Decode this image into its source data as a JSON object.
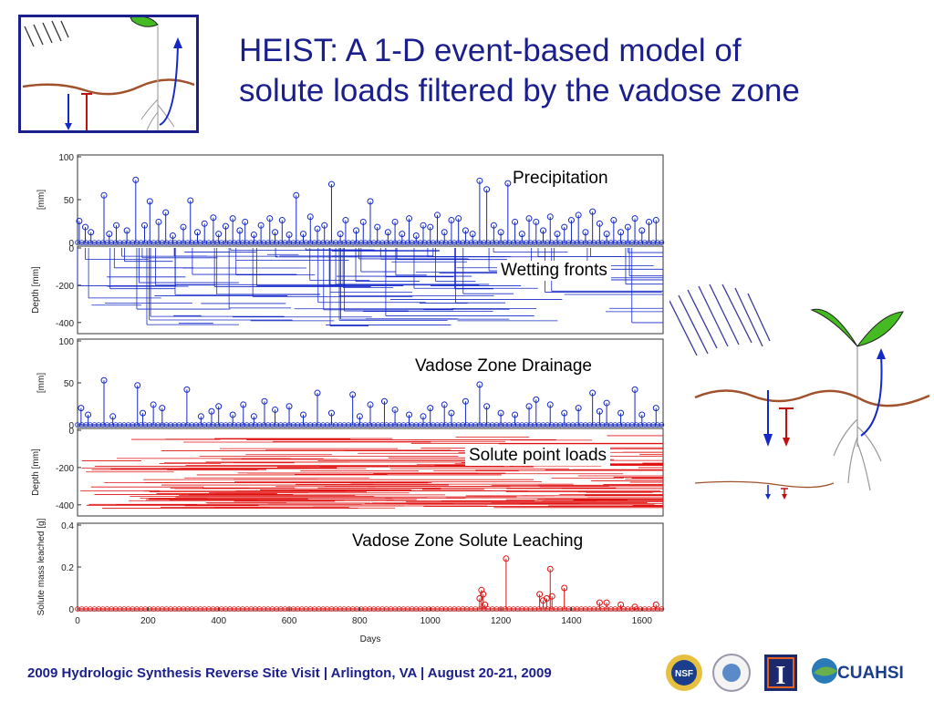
{
  "slide": {
    "title_line1": "HEIST: A 1-D event-based model of",
    "title_line2": "solute loads filtered by the vadose zone",
    "footer": "2009 Hydrologic Synthesis Reverse Site Visit | Arlington, VA | August 20-21, 2009",
    "logos": {
      "nsf": "NSF",
      "illinois": "I",
      "cuahsi": "CUAHSI"
    }
  },
  "colors": {
    "title": "#1a1f8c",
    "blue_series": "#1428c8",
    "red_series": "#e01010",
    "soil": "#a0522d",
    "leaf": "#44bb22"
  },
  "chart_data": [
    {
      "type": "stem",
      "label": "Precipitation",
      "ylabel": "[mm]",
      "ylim": [
        0,
        100
      ],
      "yticks": [
        "100",
        "50",
        "0"
      ],
      "x": [
        5,
        22,
        38,
        75,
        90,
        110,
        140,
        165,
        190,
        205,
        230,
        250,
        270,
        300,
        320,
        340,
        360,
        385,
        400,
        420,
        440,
        460,
        475,
        500,
        520,
        545,
        560,
        580,
        600,
        620,
        640,
        660,
        680,
        700,
        720,
        745,
        760,
        790,
        810,
        830,
        850,
        880,
        900,
        920,
        940,
        960,
        980,
        1000,
        1020,
        1040,
        1060,
        1080,
        1100,
        1120,
        1140,
        1160,
        1180,
        1200,
        1220,
        1240,
        1260,
        1280,
        1300,
        1320,
        1340,
        1360,
        1380,
        1400,
        1420,
        1440,
        1460,
        1480,
        1500,
        1520,
        1540,
        1560,
        1580,
        1600,
        1620,
        1640
      ],
      "values": [
        25,
        18,
        12,
        55,
        10,
        20,
        14,
        73,
        20,
        48,
        24,
        35,
        8,
        18,
        49,
        12,
        22,
        29,
        10,
        19,
        28,
        14,
        24,
        9,
        20,
        28,
        12,
        26,
        9,
        55,
        10,
        30,
        16,
        20,
        68,
        10,
        26,
        14,
        24,
        48,
        18,
        12,
        24,
        10,
        28,
        8,
        20,
        18,
        32,
        12,
        26,
        28,
        14,
        10,
        72,
        62,
        20,
        12,
        69,
        24,
        10,
        28,
        24,
        14,
        30,
        10,
        18,
        26,
        32,
        12,
        36,
        22,
        10,
        26,
        12,
        18,
        28,
        14,
        24,
        26
      ]
    },
    {
      "type": "depth-lines",
      "label": "Wetting fronts",
      "ylabel": "Depth [mm]",
      "ylim": [
        -450,
        0
      ],
      "yticks": [
        "0",
        "-200",
        "-400"
      ]
    },
    {
      "type": "stem",
      "label": "Vadose Zone Drainage",
      "ylabel": "[mm]",
      "ylim": [
        0,
        100
      ],
      "yticks": [
        "100",
        "50",
        "0"
      ],
      "x": [
        10,
        30,
        75,
        100,
        170,
        185,
        215,
        240,
        310,
        350,
        380,
        400,
        440,
        470,
        500,
        530,
        560,
        600,
        640,
        680,
        720,
        780,
        800,
        830,
        870,
        900,
        940,
        980,
        1000,
        1040,
        1060,
        1100,
        1140,
        1160,
        1200,
        1240,
        1280,
        1300,
        1340,
        1380,
        1420,
        1460,
        1480,
        1500,
        1540,
        1580,
        1600,
        1640
      ],
      "values": [
        20,
        12,
        53,
        10,
        47,
        14,
        24,
        20,
        42,
        10,
        16,
        22,
        12,
        24,
        10,
        28,
        18,
        22,
        12,
        38,
        14,
        36,
        10,
        24,
        28,
        18,
        12,
        10,
        20,
        24,
        14,
        28,
        48,
        22,
        14,
        12,
        22,
        30,
        24,
        14,
        20,
        38,
        16,
        26,
        14,
        42,
        12,
        20
      ]
    },
    {
      "type": "depth-lines",
      "label": "Solute point loads",
      "ylabel": "Depth [mm]",
      "ylim": [
        -450,
        0
      ],
      "yticks": [
        "0",
        "-200",
        "-400"
      ]
    },
    {
      "type": "stem",
      "label": "Vadose Zone Solute Leaching",
      "ylabel": "Solute mass leached [g]",
      "xlabel": "Days",
      "ylim": [
        0,
        0.4
      ],
      "yticks": [
        "0.4",
        "0.2",
        "0"
      ],
      "xticks": [
        "0",
        "200",
        "400",
        "600",
        "800",
        "1000",
        "1200",
        "1400",
        "1600"
      ],
      "xlim": [
        0,
        1660
      ],
      "x": [
        1140,
        1145,
        1150,
        1155,
        1215,
        1310,
        1320,
        1330,
        1340,
        1345,
        1380,
        1480,
        1500,
        1540,
        1580,
        1640
      ],
      "values": [
        0.05,
        0.09,
        0.07,
        0.02,
        0.24,
        0.07,
        0.04,
        0.05,
        0.19,
        0.06,
        0.1,
        0.03,
        0.03,
        0.02,
        0.01,
        0.02
      ]
    }
  ]
}
